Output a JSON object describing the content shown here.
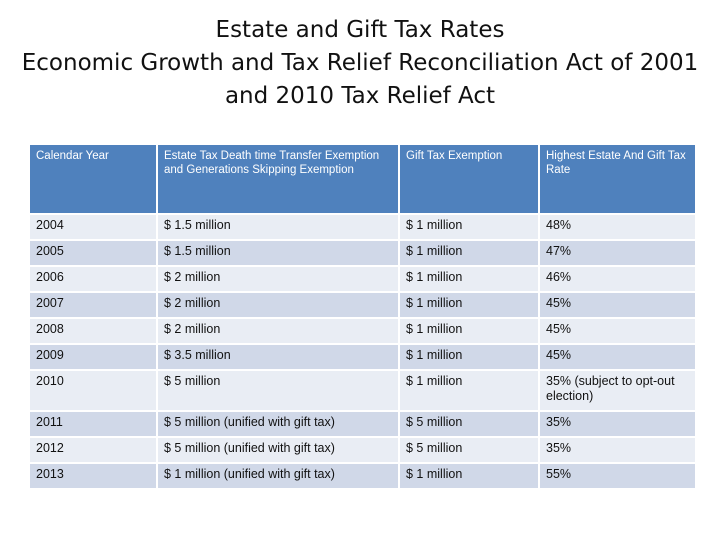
{
  "title": {
    "line1": "Estate and Gift Tax Rates",
    "line2": "Economic Growth and Tax Relief Reconciliation Act of 2001",
    "line3": "and 2010 Tax Relief Act"
  },
  "table": {
    "headers": {
      "year": "Calendar Year",
      "exemption": "Estate Tax Death time Transfer Exemption and Generations Skipping Exemption",
      "gift": "Gift Tax Exemption",
      "rate": "Highest Estate And Gift Tax Rate"
    },
    "rows": [
      {
        "year": "2004",
        "exemption": "$ 1.5 million",
        "gift": "$ 1 million",
        "rate": "48%"
      },
      {
        "year": "2005",
        "exemption": "$ 1.5 million",
        "gift": "$ 1 million",
        "rate": "47%"
      },
      {
        "year": "2006",
        "exemption": "$ 2 million",
        "gift": "$ 1 million",
        "rate": "46%"
      },
      {
        "year": "2007",
        "exemption": "$ 2 million",
        "gift": "$ 1 million",
        "rate": "45%"
      },
      {
        "year": "2008",
        "exemption": "$ 2 million",
        "gift": "$ 1 million",
        "rate": "45%"
      },
      {
        "year": "2009",
        "exemption": "$ 3.5 million",
        "gift": "$ 1 million",
        "rate": "45%"
      },
      {
        "year": "2010",
        "exemption": "$ 5 million",
        "gift": "$ 1 million",
        "rate": "35% (subject to opt-out election)"
      },
      {
        "year": "2011",
        "exemption": "$ 5 million (unified with gift tax)",
        "gift": "$ 5 million",
        "rate": "35%"
      },
      {
        "year": "2012",
        "exemption": "$ 5 million (unified with gift tax)",
        "gift": "$ 5 million",
        "rate": "35%"
      },
      {
        "year": "2013",
        "exemption": "$ 1 million (unified with gift tax)",
        "gift": "$ 1 million",
        "rate": "55%"
      }
    ]
  },
  "colors": {
    "header_bg": "#4f81bd",
    "row_even": "#e9edf4",
    "row_odd": "#d0d8e8"
  }
}
